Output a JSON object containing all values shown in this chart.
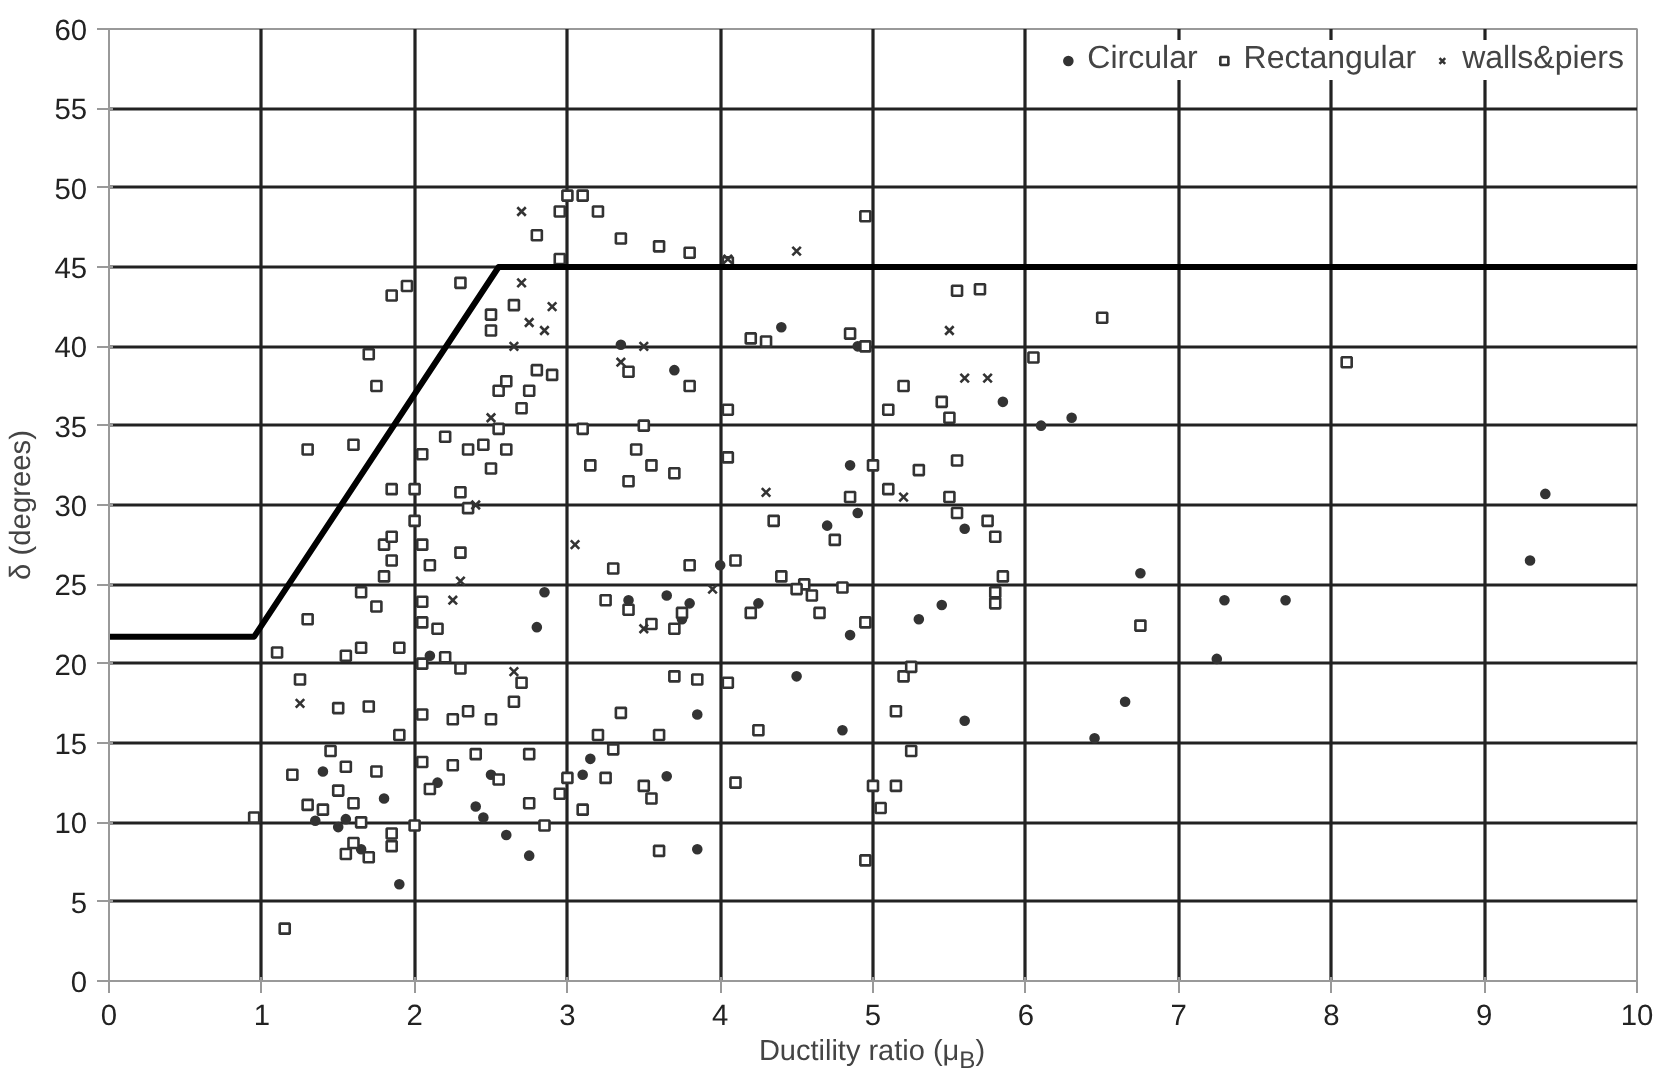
{
  "chart_data": {
    "type": "scatter",
    "xlabel": "Ductility ratio (μ$_{B}$)",
    "ylabel": "δ (degrees)",
    "xlim": [
      0,
      10
    ],
    "ylim": [
      0,
      60
    ],
    "xticks": [
      0,
      1,
      2,
      3,
      4,
      5,
      6,
      7,
      8,
      9,
      10
    ],
    "yticks": [
      0,
      5,
      10,
      15,
      20,
      25,
      30,
      35,
      40,
      45,
      50,
      55,
      60
    ],
    "grid": true,
    "legend": "top right",
    "series": [
      {
        "name": "Circular",
        "color": "#333333",
        "marker": "circle",
        "x": [
          9.4,
          9.3,
          7.7,
          7.3,
          7.25,
          6.75,
          6.65,
          6.45,
          6.3,
          6.1,
          5.6,
          5.6,
          5.45,
          5.3,
          4.85,
          4.8,
          4.5,
          4.9,
          4.85,
          4.7,
          4.25,
          3.85,
          3.8,
          3.75,
          3.65,
          3.4,
          3.85,
          3.65,
          3.1,
          3.15,
          2.85,
          2.6,
          2.75,
          2.45,
          1.9,
          1.35,
          1.5,
          1.8,
          1.4,
          2.15,
          2.4,
          2.5,
          4.0,
          4.4,
          4.9,
          3.7,
          3.35,
          5.85,
          2.1,
          1.55,
          1.65,
          2.8
        ],
        "values": [
          30.7,
          26.5,
          24,
          24,
          20.3,
          25.7,
          17.6,
          15.3,
          35.5,
          35,
          16.4,
          28.5,
          23.7,
          22.8,
          21.8,
          15.8,
          19.2,
          29.5,
          32.5,
          28.7,
          23.8,
          16.8,
          23.8,
          22.8,
          24.3,
          24,
          8.3,
          12.9,
          13,
          14,
          24.5,
          9.2,
          7.9,
          10.3,
          6.1,
          10.1,
          9.7,
          11.5,
          13.2,
          12.5,
          11,
          13,
          26.2,
          41.2,
          40,
          38.5,
          40.1,
          36.5,
          20.5,
          10.2,
          8.3,
          22.3
        ]
      },
      {
        "name": "Rectangular",
        "color": "#333333",
        "marker": "square",
        "x": [
          0.95,
          1.15,
          1.1,
          1.3,
          1.3,
          1.2,
          1.25,
          1.55,
          1.7,
          1.5,
          1.45,
          1.55,
          1.3,
          1.4,
          1.5,
          1.6,
          1.65,
          1.55,
          1.6,
          1.7,
          1.85,
          1.85,
          1.75,
          1.9,
          1.65,
          1.8,
          1.85,
          1.8,
          1.75,
          1.65,
          1.9,
          1.85,
          1.85,
          1.75,
          1.7,
          1.85,
          1.95,
          1.6,
          2.05,
          2.0,
          2.0,
          2.05,
          2.1,
          2.05,
          2.15,
          2.2,
          2.05,
          2.05,
          2.05,
          2.05,
          2.0,
          2.1,
          2.25,
          2.25,
          2.35,
          2.4,
          2.5,
          2.65,
          2.75,
          2.7,
          2.55,
          2.3,
          2.3,
          2.35,
          2.3,
          2.35,
          2.45,
          2.5,
          2.2,
          2.6,
          2.55,
          2.55,
          2.6,
          2.7,
          2.75,
          2.9,
          2.8,
          2.5,
          2.65,
          2.3,
          2.5,
          2.8,
          2.95,
          2.95,
          3.0,
          3.1,
          3.2,
          3.35,
          3.6,
          3.8,
          4.05,
          3.4,
          3.8,
          4.2,
          4.3,
          3.5,
          3.45,
          3.55,
          3.7,
          3.4,
          3.1,
          3.15,
          3.3,
          3.25,
          3.4,
          3.55,
          3.7,
          3.75,
          3.8,
          4.05,
          4.05,
          4.1,
          4.2,
          4.4,
          4.55,
          4.6,
          4.65,
          4.35,
          4.5,
          4.75,
          4.85,
          4.95,
          4.95,
          5.0,
          5.1,
          5.2,
          5.45,
          5.55,
          5.5,
          5.1,
          5.3,
          5.5,
          5.55,
          5.75,
          5.8,
          5.8,
          5.85,
          5.7,
          5.55,
          5.0,
          5.15,
          5.25,
          5.05,
          4.95,
          5.15,
          5.2,
          5.25,
          4.95,
          4.8,
          4.25,
          4.1,
          4.05,
          3.7,
          3.85,
          3.6,
          3.2,
          3.3,
          3.5,
          3.55,
          3.35,
          3.6,
          3.25,
          3.0,
          3.1,
          2.95,
          2.85,
          2.75,
          6.05,
          6.5,
          6.75,
          8.1,
          5.8,
          4.85
        ],
        "values": [
          10.3,
          3.3,
          20.7,
          33.5,
          22.8,
          13,
          19,
          20.5,
          17.3,
          17.2,
          14.5,
          13.5,
          11.1,
          10.8,
          12,
          11.2,
          10,
          8,
          8.7,
          7.8,
          9.3,
          8.5,
          13.2,
          15.5,
          24.5,
          27.5,
          26.5,
          25.5,
          23.6,
          21,
          21,
          28,
          31,
          37.5,
          39.5,
          43.2,
          43.8,
          33.8,
          33.2,
          31,
          29,
          27.5,
          26.2,
          23.9,
          22.2,
          20.4,
          22.6,
          20,
          16.8,
          13.8,
          9.8,
          12.1,
          13.6,
          16.5,
          17,
          14.3,
          16.5,
          17.6,
          14.3,
          18.8,
          12.7,
          19.7,
          27,
          29.8,
          30.8,
          33.5,
          33.8,
          32.3,
          34.3,
          33.5,
          34.8,
          37.2,
          37.8,
          36.1,
          37.2,
          38.2,
          38.5,
          42,
          42.6,
          44,
          41,
          47,
          45.5,
          48.5,
          49.5,
          49.5,
          48.5,
          46.8,
          46.3,
          45.9,
          45.3,
          38.4,
          37.5,
          40.5,
          40.3,
          35,
          33.5,
          32.5,
          32,
          31.5,
          34.8,
          32.5,
          26,
          24,
          23.4,
          22.5,
          22.2,
          23.2,
          26.2,
          36,
          33,
          26.5,
          23.2,
          25.5,
          25,
          24.3,
          23.2,
          29,
          24.7,
          27.8,
          40.8,
          40,
          48.2,
          32.5,
          36,
          37.5,
          36.5,
          32.8,
          35.5,
          31,
          32.2,
          30.5,
          29.5,
          29,
          28,
          24.5,
          25.5,
          43.6,
          43.5,
          12.3,
          12.3,
          14.5,
          10.9,
          7.6,
          17,
          19.2,
          19.8,
          22.6,
          24.8,
          15.8,
          12.5,
          18.8,
          19.2,
          19,
          15.5,
          15.5,
          14.6,
          12.3,
          11.5,
          16.9,
          8.2,
          12.8,
          12.8,
          10.8,
          11.8,
          9.8,
          11.2,
          39.3,
          41.8,
          22.4,
          39,
          23.8,
          30.5
        ]
      },
      {
        "name": "walls&piers",
        "color": "#333333",
        "marker": "cross",
        "x": [
          2.7,
          2.7,
          2.9,
          2.85,
          2.75,
          2.65,
          3.5,
          4.5,
          3.35,
          2.4,
          2.25,
          1.25,
          2.65,
          3.05,
          3.5,
          5.6,
          5.5,
          5.75,
          5.2,
          4.3,
          2.5,
          2.3,
          3.95,
          4.05
        ],
        "values": [
          48.5,
          44,
          42.5,
          41,
          41.5,
          40,
          40,
          46,
          39,
          30,
          24,
          17.5,
          19.5,
          27.5,
          22.2,
          38,
          41,
          38,
          30.5,
          30.8,
          35.5,
          25.2,
          24.7,
          45.5
        ]
      },
      {
        "type": "line",
        "color": "#000000",
        "marker": "none",
        "x": [
          0,
          0.95,
          2.55,
          10
        ],
        "values": [
          21.7,
          21.7,
          45,
          45
        ]
      }
    ]
  }
}
